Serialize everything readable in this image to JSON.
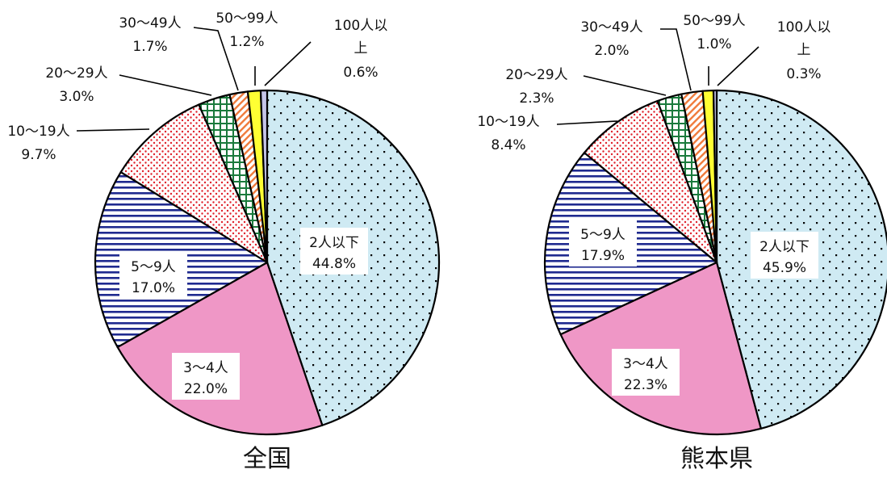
{
  "chart_data": [
    {
      "type": "pie",
      "title": "全国",
      "slices": [
        {
          "name": "2人以下",
          "value": 44.8,
          "label": "44.8%",
          "pattern": "dots-blue"
        },
        {
          "name": "3〜4人",
          "value": 22.0,
          "label": "22.0%",
          "pattern": "solid-pink"
        },
        {
          "name": "5〜9人",
          "value": 17.0,
          "label": "17.0%",
          "pattern": "hlines-navy"
        },
        {
          "name": "10〜19人",
          "value": 9.7,
          "label": "9.7%",
          "pattern": "dots-red"
        },
        {
          "name": "20〜29人",
          "value": 3.0,
          "label": "3.0%",
          "pattern": "grid-green"
        },
        {
          "name": "30〜49人",
          "value": 1.7,
          "label": "1.7%",
          "pattern": "diag-orange"
        },
        {
          "name": "50〜99人",
          "value": 1.2,
          "label": "1.2%",
          "pattern": "solid-yellow"
        },
        {
          "name": "100人以上",
          "value": 0.6,
          "label": "0.6%",
          "pattern": "solid-lavender"
        }
      ]
    },
    {
      "type": "pie",
      "title": "熊本県",
      "slices": [
        {
          "name": "2人以下",
          "value": 45.9,
          "label": "45.9%",
          "pattern": "dots-blue"
        },
        {
          "name": "3〜4人",
          "value": 22.3,
          "label": "22.3%",
          "pattern": "solid-pink"
        },
        {
          "name": "5〜9人",
          "value": 17.9,
          "label": "17.9%",
          "pattern": "hlines-navy"
        },
        {
          "name": "10〜19人",
          "value": 8.4,
          "label": "8.4%",
          "pattern": "dots-red"
        },
        {
          "name": "20〜29人",
          "value": 2.3,
          "label": "2.3%",
          "pattern": "grid-green"
        },
        {
          "name": "30〜49人",
          "value": 2.0,
          "label": "2.0%",
          "pattern": "diag-orange"
        },
        {
          "name": "50〜99人",
          "value": 1.0,
          "label": "1.0%",
          "pattern": "solid-yellow"
        },
        {
          "name": "100人以上",
          "value": 0.3,
          "label": "0.3%",
          "pattern": "solid-lavender"
        }
      ]
    }
  ],
  "colors": {
    "dots_blue_bg": "#cfeaf3",
    "pink": "#ef97c6",
    "navy_lines": "#1f2a8f",
    "red_dots": "#e0202a",
    "green_grid": "#1a7a3c",
    "orange_diag": "#f07a3a",
    "yellow": "#ffff33",
    "lavender": "#c5c5e8",
    "outline": "#000000"
  }
}
